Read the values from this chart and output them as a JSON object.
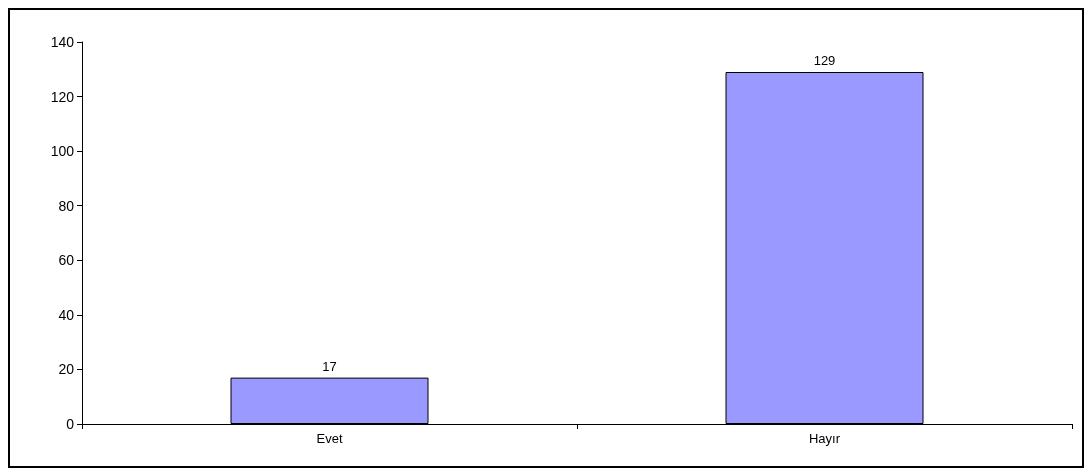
{
  "chart_data": {
    "type": "bar",
    "categories": [
      "Evet",
      "Hayır"
    ],
    "values": [
      17,
      129
    ],
    "color": "#9999ff",
    "ylim": [
      0,
      140
    ],
    "yticks": [
      0,
      20,
      40,
      60,
      80,
      100,
      120,
      140
    ],
    "grid": false,
    "data_labels": true
  }
}
